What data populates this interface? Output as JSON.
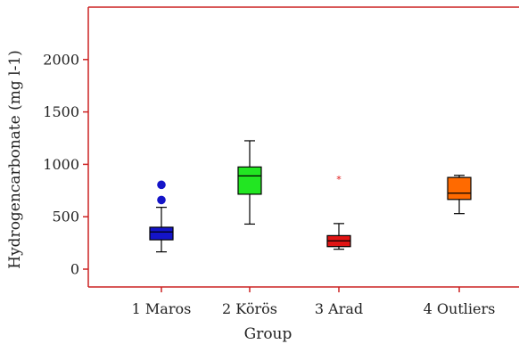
{
  "chart_data": {
    "type": "boxplot",
    "title": "",
    "xlabel": "Group",
    "ylabel": "Hydrogencarbonate (mg l-1)",
    "ylim": [
      -170,
      2500
    ],
    "yticks": [
      0,
      500,
      1000,
      1500,
      2000
    ],
    "grid": false,
    "frame_color": "#cc2222",
    "categories": [
      "1 Maros",
      "2 Körös",
      "3 Arad",
      "4 Outliers"
    ],
    "groups": [
      {
        "name": "1 Maros",
        "color": "#1414c8",
        "whisker_low": 165,
        "q1": 280,
        "median": 355,
        "q3": 400,
        "whisker_high": 590,
        "outliers": [
          {
            "value": 660,
            "marker": "circle"
          },
          {
            "value": 805,
            "marker": "circle"
          }
        ]
      },
      {
        "name": "2 Körös",
        "color": "#22e622",
        "whisker_low": 430,
        "q1": 715,
        "median": 890,
        "q3": 975,
        "whisker_high": 1225,
        "outliers": []
      },
      {
        "name": "3 Arad",
        "color": "#e01414",
        "whisker_low": 190,
        "q1": 215,
        "median": 270,
        "q3": 320,
        "whisker_high": 435,
        "outliers": [
          {
            "value": 860,
            "marker": "star"
          }
        ]
      },
      {
        "name": "4 Outliers",
        "color": "#ff6a00",
        "whisker_low": 530,
        "q1": 665,
        "median": 725,
        "q3": 875,
        "whisker_high": 895,
        "outliers": []
      }
    ]
  }
}
